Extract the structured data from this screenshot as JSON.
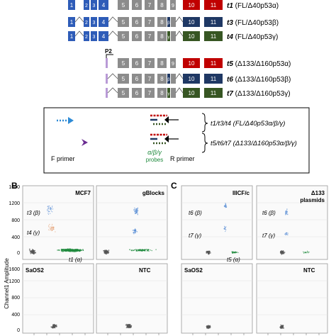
{
  "exons": {
    "e1": "1",
    "e2": "2",
    "e3": "3",
    "e4": "4",
    "e5": "5",
    "e6": "6",
    "e7": "7",
    "e8": "8",
    "e9": "9",
    "e10": "10",
    "e11": "11",
    "beta": "β",
    "gamma": "γ"
  },
  "transcripts": [
    {
      "id": "t1",
      "desc": " (FL/Δ40p53α)"
    },
    {
      "id": "t3",
      "desc": " (FL/Δ40p53β)"
    },
    {
      "id": "t4",
      "desc": " (FL/Δ40p53γ)"
    },
    {
      "id": "t5",
      "desc": " (Δ133/Δ160p53α)"
    },
    {
      "id": "t6",
      "desc": " (Δ133/Δ160p53β)"
    },
    {
      "id": "t7",
      "desc": " (Δ133/Δ160p53γ)"
    }
  ],
  "promoter_label": "P2",
  "assay": {
    "group1": "t1/t3/t4 (FL/Δ40p53α/β/γ)",
    "group2": "t5/t6/t7 (Δ133/Δ160p53α/β/γ)",
    "f_primer": "F primer",
    "r_primer": "R primer",
    "probes_top": "α/β/γ",
    "probes_bottom": "probes"
  },
  "panels": {
    "b_letter": "B",
    "c_letter": "C",
    "y_axis_title": "Channel1 Amplitude",
    "y_ticks": [
      "0",
      "400",
      "800",
      "1200",
      "1600"
    ],
    "samples": [
      "MCF7",
      "gBlocks",
      "IIICF/c",
      "Δ133",
      "plasmids",
      "SaOS2",
      "NTC",
      "SaOS2",
      "NTC"
    ],
    "cluster_labels_b": [
      "t3 (β)",
      "t4 (γ)",
      "t1 (α)"
    ],
    "cluster_labels_c": [
      "t6 (β)",
      "t7 (γ)",
      "t5 (α)"
    ]
  },
  "colors": {
    "blue_exon": "#2e5cb8",
    "gray_exon": "#8c8c8c",
    "red_exon": "#c00000",
    "navy_exon": "#1f3864",
    "green_exon": "#375623",
    "beta_droplets": "#5b8fd6",
    "gamma_droplets": "#e39a6b",
    "alpha_droplets": "#1e8a3c",
    "negative_droplets": "#555555"
  }
}
